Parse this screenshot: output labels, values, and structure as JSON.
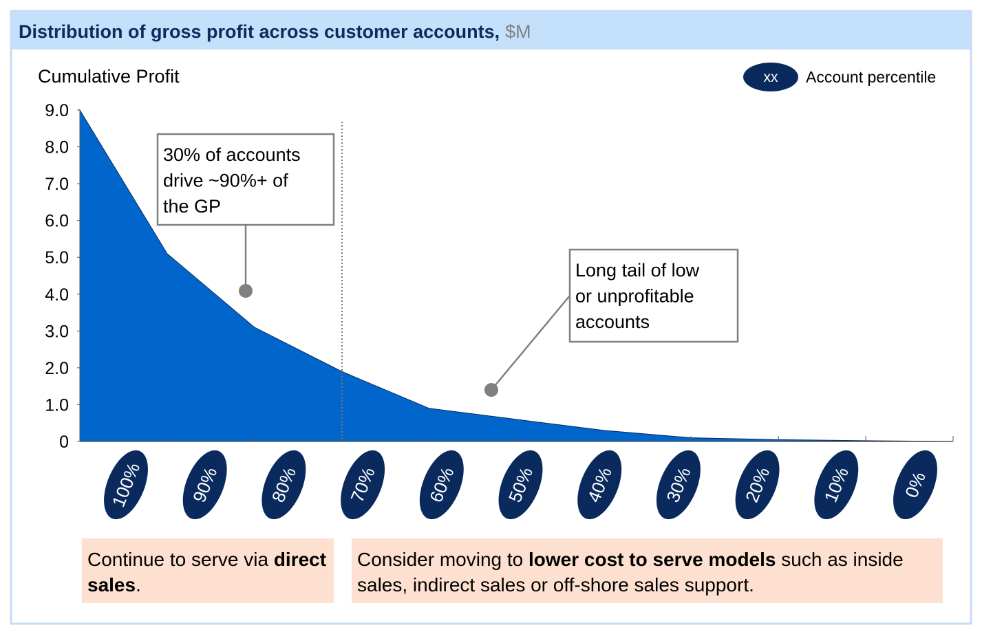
{
  "chart_data": {
    "type": "area",
    "title": "Distribution of gross profit across customer accounts,",
    "title_unit": "$M",
    "ylabel": "Cumulative Profit",
    "legend": {
      "symbol": "xx",
      "label": "Account percentile"
    },
    "categories": [
      "100%",
      "90%",
      "80%",
      "70%",
      "60%",
      "50%",
      "40%",
      "30%",
      "20%",
      "10%",
      "0%"
    ],
    "values": [
      9.0,
      5.1,
      3.1,
      1.9,
      0.9,
      0.6,
      0.3,
      0.1,
      0.05,
      0.02,
      0
    ],
    "color": "#0066cc",
    "ylim": [
      0,
      9
    ],
    "yticks": [
      0,
      {
        "value": 1,
        "label": "1.0"
      },
      {
        "value": 2,
        "label": "2.0"
      },
      {
        "value": 3,
        "label": "3.0"
      },
      {
        "value": 4,
        "label": "4.0"
      },
      {
        "value": 5,
        "label": "5.0"
      },
      {
        "value": 6,
        "label": "6.0"
      },
      {
        "value": 7,
        "label": "7.0"
      },
      {
        "value": 8,
        "label": "8.0"
      },
      {
        "value": 9,
        "label": "9.0"
      }
    ],
    "annotations": [
      {
        "lines": [
          "30% of accounts",
          "drive ~90%+ of",
          "the GP"
        ]
      },
      {
        "lines": [
          "Long tail of low",
          "or unprofitable",
          "accounts"
        ]
      }
    ],
    "notes": [
      [
        {
          "text": "Continue to serve via "
        },
        {
          "text": "direct sales",
          "bold": true
        },
        {
          "text": "."
        }
      ],
      [
        {
          "text": "Consider moving to "
        },
        {
          "text": "lower cost to serve models",
          "bold": true
        },
        {
          "text": " such as inside sales, indirect sales or off-shore sales support."
        }
      ]
    ]
  }
}
